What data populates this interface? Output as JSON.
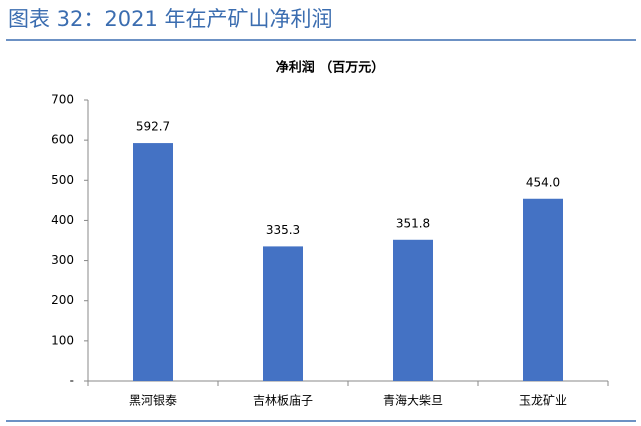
{
  "header": {
    "title": "图表 32：2021 年在产矿山净利润"
  },
  "chart_data": {
    "type": "bar",
    "title": "净利润 （百万元）",
    "categories": [
      "黑河银泰",
      "吉林板庙子",
      "青海大柴旦",
      "玉龙矿业"
    ],
    "values": [
      592.7,
      335.3,
      351.8,
      454.0
    ],
    "value_labels": [
      "592.7",
      "335.3",
      "351.8",
      "454.0"
    ],
    "color": "#4472c4",
    "ylim": [
      0,
      700
    ],
    "yticks": [
      {
        "value": 0,
        "label": "-"
      },
      100,
      200,
      300,
      400,
      500,
      600,
      700
    ],
    "grid": false
  }
}
